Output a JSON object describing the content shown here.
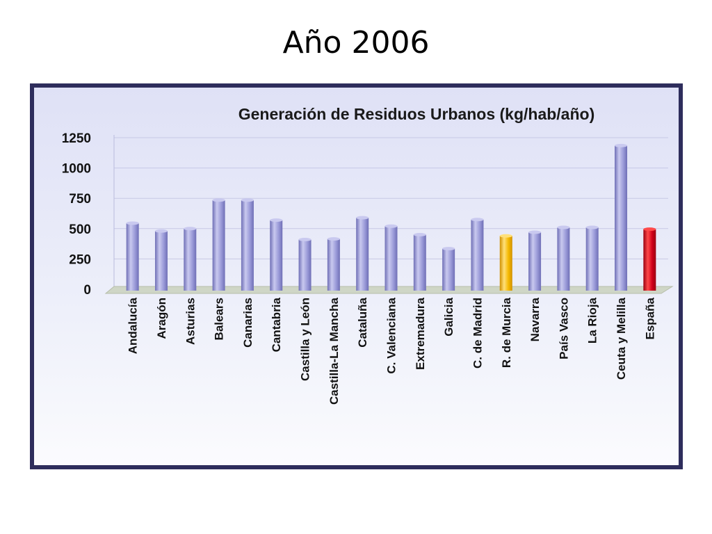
{
  "slide": {
    "title": "Año 2006"
  },
  "chart_data": {
    "type": "bar",
    "title": "Generación de Residuos Urbanos (kg/hab/año)",
    "xlabel": "",
    "ylabel": "",
    "ylim": [
      0,
      1250
    ],
    "yticks": [
      0,
      250,
      500,
      750,
      1000,
      1250
    ],
    "ytick_labels": [
      "0",
      "250",
      "500",
      "750",
      "1000",
      "1250"
    ],
    "grid": true,
    "categories": [
      "Andalucía",
      "Aragón",
      "Asturias",
      "Balears",
      "Canarias",
      "Cantabria",
      "Castilla y León",
      "Castilla-La Mancha",
      "Cataluña",
      "C. Valenciana",
      "Extremadura",
      "Galicia",
      "C. de Madrid",
      "R. de Murcia",
      "Navarra",
      "País Vasco",
      "La Rioja",
      "Ceuta y Melilla",
      "España"
    ],
    "values": [
      545,
      480,
      500,
      735,
      735,
      570,
      410,
      415,
      590,
      520,
      450,
      335,
      575,
      440,
      470,
      510,
      510,
      1185,
      495
    ],
    "colors": {
      "default": "#9a9ad8",
      "default_light": "#c9c9ef",
      "default_dark": "#6f6fb6",
      "highlight_murcia": "#f5b800",
      "highlight_murcia_light": "#ffe07a",
      "highlight_murcia_dark": "#d09000",
      "highlight_espana": "#d0001a",
      "highlight_espana_light": "#ff4a4a",
      "highlight_espana_dark": "#9a0010"
    },
    "highlights": {
      "R. de Murcia": "murcia",
      "España": "espana"
    }
  }
}
